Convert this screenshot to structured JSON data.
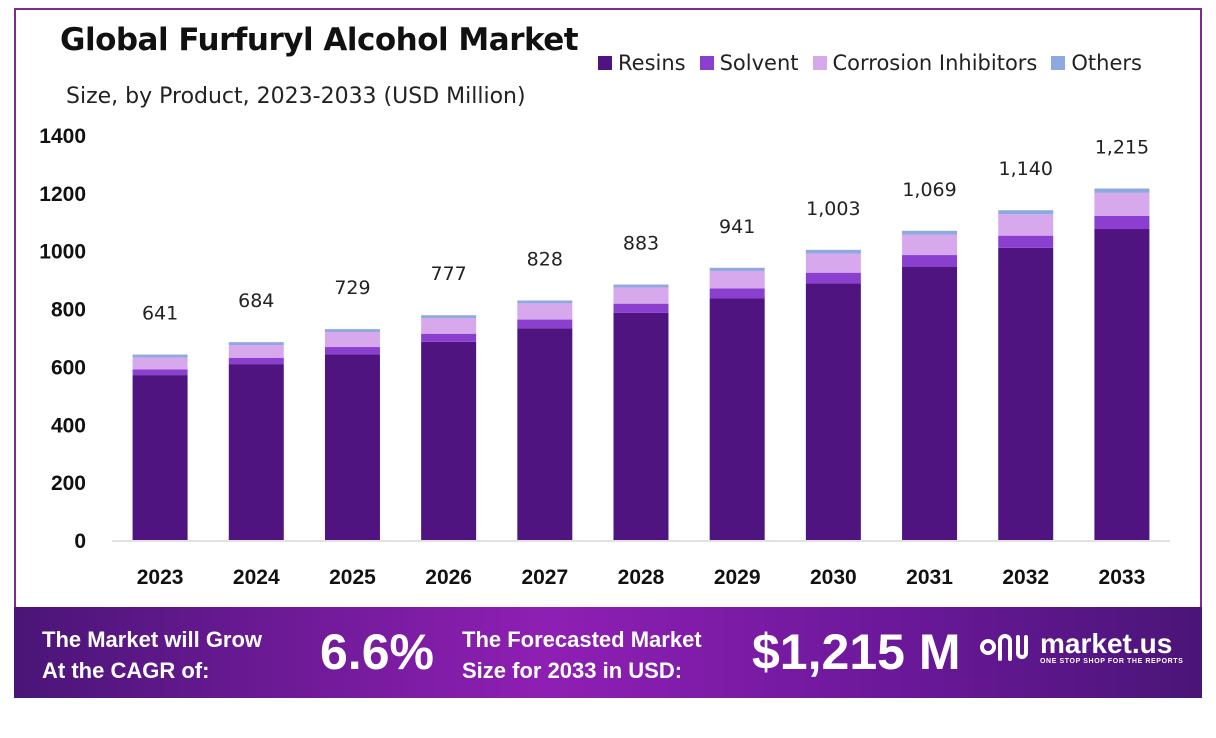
{
  "header": {
    "title": "Global Furfuryl Alcohol Market",
    "subtitle": "Size, by Product, 2023-2033 (USD Million)"
  },
  "legend": [
    {
      "label": "Resins",
      "color": "#4f1480"
    },
    {
      "label": "Solvent",
      "color": "#8a3fcf"
    },
    {
      "label": "Corrosion Inhibitors",
      "color": "#d8a8ec"
    },
    {
      "label": "Others",
      "color": "#8ea9e0"
    }
  ],
  "chart_data": {
    "type": "bar",
    "stacked": true,
    "title": "Global Furfuryl Alcohol Market",
    "subtitle": "Size, by Product, 2023-2033 (USD Million)",
    "categories": [
      "2023",
      "2024",
      "2025",
      "2026",
      "2027",
      "2028",
      "2029",
      "2030",
      "2031",
      "2032",
      "2033"
    ],
    "series": [
      {
        "name": "Resins",
        "color": "#4f1480",
        "values": [
          570,
          608,
          642,
          685,
          732,
          785,
          835,
          887,
          945,
          1010,
          1075
        ]
      },
      {
        "name": "Solvent",
        "color": "#8a3fcf",
        "values": [
          20,
          22,
          25,
          28,
          30,
          32,
          35,
          37,
          40,
          42,
          45
        ]
      },
      {
        "name": "Corrosion Inhibitors",
        "color": "#d8a8ec",
        "values": [
          41,
          44,
          52,
          54,
          56,
          56,
          60,
          66,
          70,
          74,
          80
        ]
      },
      {
        "name": "Others",
        "color": "#8ea9e0",
        "values": [
          10,
          10,
          10,
          10,
          10,
          10,
          11,
          13,
          14,
          14,
          15
        ]
      }
    ],
    "totals": [
      641,
      684,
      729,
      777,
      828,
      883,
      941,
      1003,
      1069,
      1140,
      1215
    ],
    "total_labels": [
      "641",
      "684",
      "729",
      "777",
      "828",
      "883",
      "941",
      "1,003",
      "1,069",
      "1,140",
      "1,215"
    ],
    "yticks": [
      "0",
      "200",
      "400",
      "600",
      "800",
      "1000",
      "1200",
      "1400"
    ],
    "ylim": [
      0,
      1400
    ],
    "xlabel": "",
    "ylabel": "",
    "legend_position": "top-right"
  },
  "banner": {
    "cagr_line1": "The Market will Grow",
    "cagr_line2": "At the CAGR of:",
    "cagr_value": "6.6%",
    "forecast_line1": "The Forecasted Market",
    "forecast_line2": "Size for 2033 in USD:",
    "forecast_value": "$1,215 M",
    "brand": "market.us",
    "tagline": "ONE STOP SHOP FOR THE REPORTS"
  }
}
